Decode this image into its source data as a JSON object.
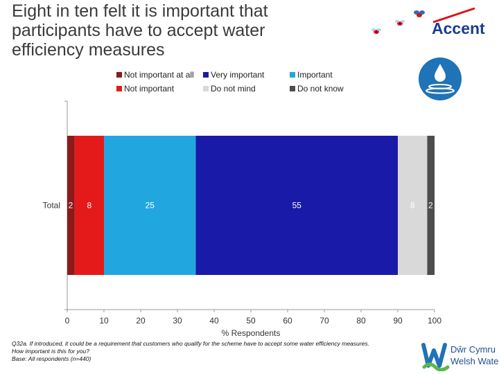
{
  "title": "Eight in ten felt it is important that participants have to accept water efficiency measures",
  "chart_data": {
    "type": "bar",
    "orientation": "horizontal",
    "stacked": true,
    "categories": [
      "Total"
    ],
    "series": [
      {
        "name": "Not important at all",
        "values": [
          2
        ],
        "color": "#8b1a1a"
      },
      {
        "name": "Not important",
        "values": [
          8
        ],
        "color": "#e41a1a"
      },
      {
        "name": "Important",
        "values": [
          25
        ],
        "color": "#22a6e0"
      },
      {
        "name": "Very important",
        "values": [
          55
        ],
        "color": "#1a1aa8"
      },
      {
        "name": "Do not mind",
        "values": [
          8
        ],
        "color": "#d9d9d9"
      },
      {
        "name": "Do not know",
        "values": [
          2
        ],
        "color": "#4d4d4d"
      }
    ],
    "xlabel": "% Respondents",
    "xlim": [
      0,
      100
    ],
    "xticks": [
      0,
      10,
      20,
      30,
      40,
      50,
      60,
      70,
      80,
      90,
      100
    ],
    "legend_position": "top"
  },
  "footnote": {
    "question": "Q32a. If introduced, it could be a requirement that customers who qualify for the scheme have to accept some water efficiency measures. How important is this for you?",
    "base": "Base: All respondents (n=440)"
  },
  "logos": {
    "accent": "Accent",
    "welsh_water_line1": "Dŵr Cymru",
    "welsh_water_line2": "Welsh Water"
  },
  "colors": {
    "accent_blue": "#1a3c8f",
    "accent_red": "#d7141a",
    "water_blue": "#1f73b7",
    "welsh_water_blue": "#1f4e8c",
    "welsh_water_green": "#5cb84a"
  }
}
